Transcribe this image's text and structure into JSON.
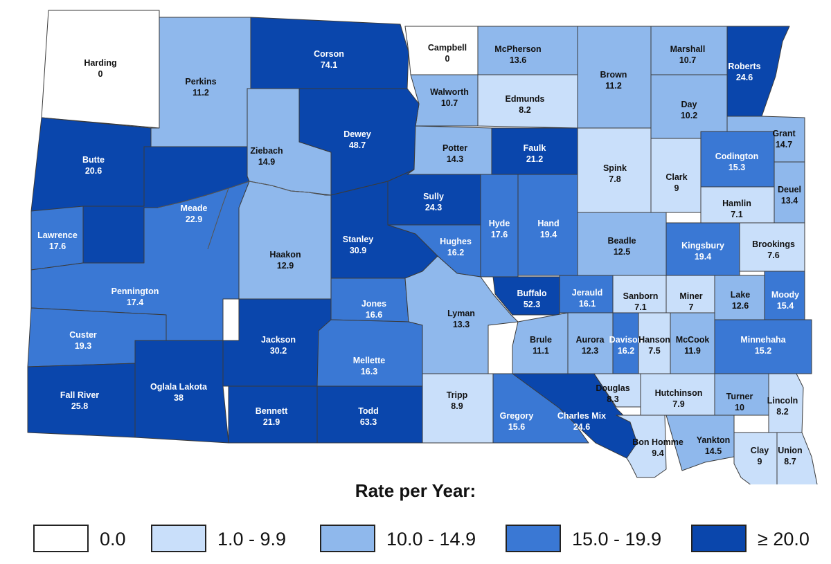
{
  "legend": {
    "title": "Rate per Year:",
    "items": [
      {
        "label": "0.0",
        "color": "#ffffff"
      },
      {
        "label": "1.0 - 9.9",
        "color": "#c9dffa"
      },
      {
        "label": "10.0 - 14.9",
        "color": "#8fb8ec"
      },
      {
        "label": "15.0 - 19.9",
        "color": "#3a78d4"
      },
      {
        "label": "≥ 20.0",
        "color": "#0a46ac"
      }
    ]
  },
  "counties": [
    {
      "name": "Harding",
      "value": "0"
    },
    {
      "name": "Perkins",
      "value": "11.2"
    },
    {
      "name": "Corson",
      "value": "74.1"
    },
    {
      "name": "Campbell",
      "value": "0"
    },
    {
      "name": "McPherson",
      "value": "13.6"
    },
    {
      "name": "Brown",
      "value": "11.2"
    },
    {
      "name": "Marshall",
      "value": "10.7"
    },
    {
      "name": "Roberts",
      "value": "24.6"
    },
    {
      "name": "Walworth",
      "value": "10.7"
    },
    {
      "name": "Edmunds",
      "value": "8.2"
    },
    {
      "name": "Day",
      "value": "10.2"
    },
    {
      "name": "Grant",
      "value": "14.7"
    },
    {
      "name": "Butte",
      "value": "20.6"
    },
    {
      "name": "Ziebach",
      "value": "14.9"
    },
    {
      "name": "Dewey",
      "value": "48.7"
    },
    {
      "name": "Potter",
      "value": "14.3"
    },
    {
      "name": "Faulk",
      "value": "21.2"
    },
    {
      "name": "Spink",
      "value": "7.8"
    },
    {
      "name": "Clark",
      "value": "9"
    },
    {
      "name": "Codington",
      "value": "15.3"
    },
    {
      "name": "Deuel",
      "value": "13.4"
    },
    {
      "name": "Hamlin",
      "value": "7.1"
    },
    {
      "name": "Meade",
      "value": "22.9"
    },
    {
      "name": "Sully",
      "value": "24.3"
    },
    {
      "name": "Hyde",
      "value": "17.6"
    },
    {
      "name": "Hand",
      "value": "19.4"
    },
    {
      "name": "Lawrence",
      "value": "17.6"
    },
    {
      "name": "Stanley",
      "value": "30.9"
    },
    {
      "name": "Hughes",
      "value": "16.2"
    },
    {
      "name": "Haakon",
      "value": "12.9"
    },
    {
      "name": "Beadle",
      "value": "12.5"
    },
    {
      "name": "Kingsbury",
      "value": "19.4"
    },
    {
      "name": "Brookings",
      "value": "7.6"
    },
    {
      "name": "Pennington",
      "value": "17.4"
    },
    {
      "name": "Jones",
      "value": "16.6"
    },
    {
      "name": "Lyman",
      "value": "13.3"
    },
    {
      "name": "Buffalo",
      "value": "52.3"
    },
    {
      "name": "Jerauld",
      "value": "16.1"
    },
    {
      "name": "Sanborn",
      "value": "7.1"
    },
    {
      "name": "Miner",
      "value": "7"
    },
    {
      "name": "Lake",
      "value": "12.6"
    },
    {
      "name": "Moody",
      "value": "15.4"
    },
    {
      "name": "Custer",
      "value": "19.3"
    },
    {
      "name": "Jackson",
      "value": "30.2"
    },
    {
      "name": "Mellette",
      "value": "16.3"
    },
    {
      "name": "Brule",
      "value": "11.1"
    },
    {
      "name": "Aurora",
      "value": "12.3"
    },
    {
      "name": "Davison",
      "value": "16.2"
    },
    {
      "name": "Hanson",
      "value": "7.5"
    },
    {
      "name": "McCook",
      "value": "11.9"
    },
    {
      "name": "Minnehaha",
      "value": "15.2"
    },
    {
      "name": "Fall River",
      "value": "25.8"
    },
    {
      "name": "Oglala Lakota",
      "value": "38"
    },
    {
      "name": "Bennett",
      "value": "21.9"
    },
    {
      "name": "Todd",
      "value": "63.3"
    },
    {
      "name": "Tripp",
      "value": "8.9"
    },
    {
      "name": "Gregory",
      "value": "15.6"
    },
    {
      "name": "Charles Mix",
      "value": "24.6"
    },
    {
      "name": "Douglas",
      "value": "8.3"
    },
    {
      "name": "Hutchinson",
      "value": "7.9"
    },
    {
      "name": "Turner",
      "value": "10"
    },
    {
      "name": "Lincoln",
      "value": "8.2"
    },
    {
      "name": "Bon Homme",
      "value": "9.4"
    },
    {
      "name": "Yankton",
      "value": "14.5"
    },
    {
      "name": "Clay",
      "value": "9"
    },
    {
      "name": "Union",
      "value": "8.7"
    }
  ]
}
